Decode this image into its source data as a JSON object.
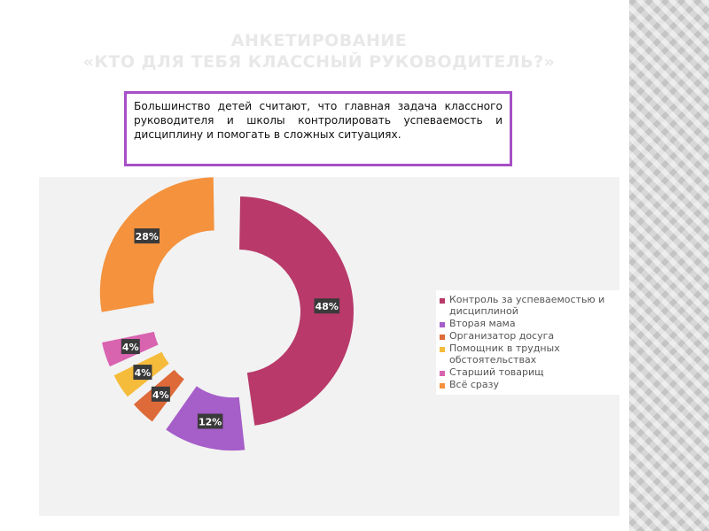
{
  "slide": {
    "title_line1": "АНКЕТИРОВАНИЕ",
    "title_line2": "«КТО ДЛЯ ТЕБЯ КЛАССНЫЙ РУКОВОДИТЕЛЬ?»",
    "note": "Большинство детей считают, что главная задача классного руководителя и школы контролировать успеваемость и дисциплину и помогать в сложных ситуациях."
  },
  "chart_data": {
    "type": "pie",
    "variant": "exploded doughnut",
    "title": "",
    "categories": [
      "Контроль за успеваемостью и дисциплиной",
      "Вторая мама",
      "Организатор досуга",
      "Помощник в трудных обстоятельствах",
      "Старший товарищ",
      "Всё сразу"
    ],
    "values": [
      48,
      12,
      4,
      4,
      4,
      28
    ],
    "data_labels": [
      "48%",
      "12%",
      "4%",
      "4%",
      "4%",
      "28%"
    ],
    "colors": [
      "#b8396a",
      "#a65ec9",
      "#dd6a38",
      "#f5bb3a",
      "#d864b0",
      "#f4923e"
    ],
    "legend_position": "right"
  }
}
